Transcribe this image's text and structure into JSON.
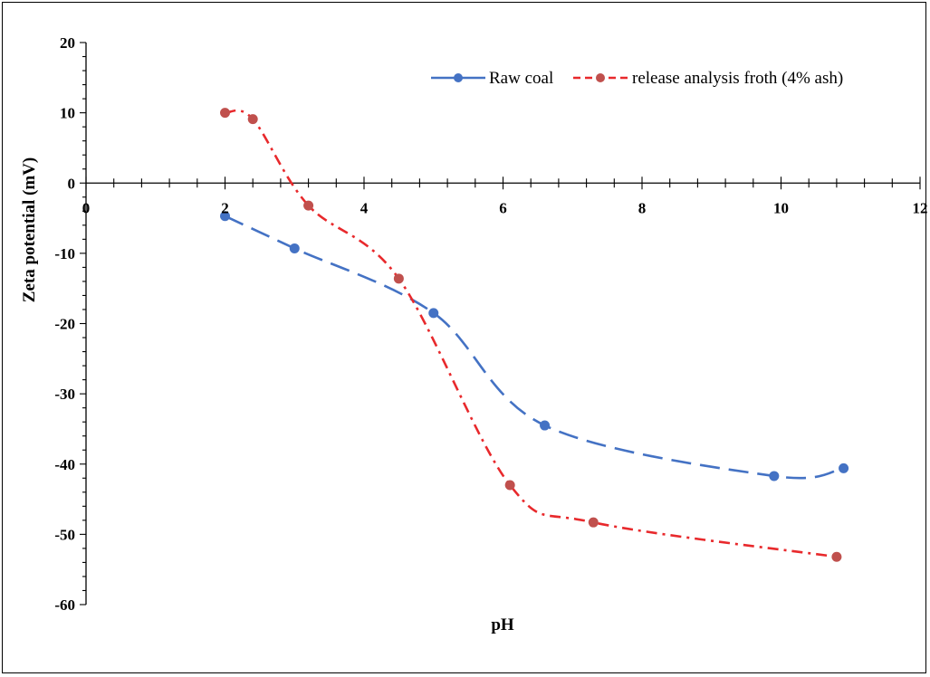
{
  "chart_data": {
    "type": "scatter",
    "title": "",
    "xlabel": "pH",
    "ylabel": "Zeta potential  (mV)",
    "xlim": [
      0,
      12
    ],
    "ylim": [
      -60,
      20
    ],
    "x_ticks": [
      0,
      2,
      4,
      6,
      8,
      10,
      12
    ],
    "x_tick_labels": [
      "0",
      "2",
      "4",
      "6",
      "8",
      "10",
      "12"
    ],
    "y_ticks": [
      20,
      10,
      0,
      -10,
      -20,
      -30,
      -40,
      -50,
      -60
    ],
    "y_tick_labels": [
      "20",
      "10",
      "0",
      "-10",
      "-20",
      "-30",
      "-40",
      "-50",
      "-60"
    ],
    "grid": false,
    "legend_position": "top-right",
    "series": [
      {
        "name": "Raw coal",
        "color": "#4472C4",
        "line_style": "dashed",
        "marker": "circle",
        "x": [
          2.0,
          3.0,
          5.0,
          6.6,
          9.9,
          10.9
        ],
        "y": [
          -4.7,
          -9.3,
          -18.5,
          -34.5,
          -41.7,
          -40.6
        ]
      },
      {
        "name": "release analysis froth (4% ash)",
        "color": "#E8292C",
        "marker_color": "#C0504D",
        "line_style": "dash-dot",
        "marker": "circle",
        "x": [
          2.0,
          2.4,
          3.2,
          4.5,
          6.1,
          7.3,
          10.8
        ],
        "y": [
          10.0,
          9.1,
          -3.2,
          -13.6,
          -43.0,
          -48.3,
          -53.2
        ]
      }
    ]
  }
}
